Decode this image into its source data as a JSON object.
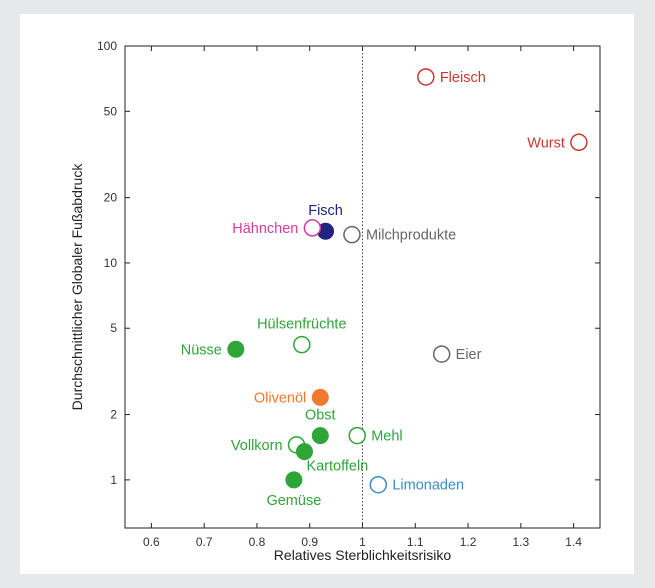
{
  "chart_data": {
    "type": "scatter",
    "xlabel": "Relatives Sterblichkeitsrisiko",
    "ylabel": "Durchschnittlicher Globaler Fußabdruck",
    "xlim": [
      0.55,
      1.45
    ],
    "ylim": [
      0.6,
      100
    ],
    "yscale": "log",
    "xticks": [
      "0.6",
      "0.7",
      "0.8",
      "0.9",
      "1",
      "1.1",
      "1.2",
      "1.3",
      "1.4"
    ],
    "yticks": [
      "1",
      "2",
      "5",
      "10",
      "20",
      "50",
      "100"
    ],
    "reference_line_x": 1,
    "grid": false,
    "points": [
      {
        "label": "Fleisch",
        "x": 1.12,
        "y": 72,
        "filled": false,
        "color": "#c8382c",
        "label_side": "right"
      },
      {
        "label": "Wurst",
        "x": 1.41,
        "y": 36,
        "filled": false,
        "color": "#c8382c",
        "label_side": "left"
      },
      {
        "label": "Fisch",
        "x": 0.93,
        "y": 14,
        "filled": true,
        "color": "#1f2480",
        "label_side": "above"
      },
      {
        "label": "Hähnchen",
        "x": 0.905,
        "y": 14.5,
        "filled": false,
        "color": "#d63b9a",
        "label_side": "left"
      },
      {
        "label": "Milchprodukte",
        "x": 0.98,
        "y": 13.5,
        "filled": false,
        "color": "#666666",
        "label_side": "right"
      },
      {
        "label": "Hülsenfrüchte",
        "x": 0.885,
        "y": 4.2,
        "filled": false,
        "color": "#2fa538",
        "label_side": "above"
      },
      {
        "label": "Nüsse",
        "x": 0.76,
        "y": 4.0,
        "filled": true,
        "color": "#2fa538",
        "label_side": "left"
      },
      {
        "label": "Eier",
        "x": 1.15,
        "y": 3.8,
        "filled": false,
        "color": "#666666",
        "label_side": "right"
      },
      {
        "label": "Olivenöl",
        "x": 0.92,
        "y": 2.4,
        "filled": true,
        "color": "#f07830",
        "label_side": "left"
      },
      {
        "label": "Obst",
        "x": 0.92,
        "y": 1.6,
        "filled": true,
        "color": "#2fa538",
        "label_side": "above"
      },
      {
        "label": "Mehl",
        "x": 0.99,
        "y": 1.6,
        "filled": false,
        "color": "#2fa538",
        "label_side": "right"
      },
      {
        "label": "Vollkorn",
        "x": 0.875,
        "y": 1.45,
        "filled": false,
        "color": "#2fa538",
        "label_side": "left"
      },
      {
        "label": "Kartoffeln",
        "x": 0.89,
        "y": 1.35,
        "filled": true,
        "color": "#2fa538",
        "label_side": "below-right"
      },
      {
        "label": "Limonaden",
        "x": 1.03,
        "y": 0.95,
        "filled": false,
        "color": "#3a8fc8",
        "label_side": "right"
      },
      {
        "label": "Gemüse",
        "x": 0.87,
        "y": 1.0,
        "filled": true,
        "color": "#2fa538",
        "label_side": "below"
      }
    ]
  }
}
